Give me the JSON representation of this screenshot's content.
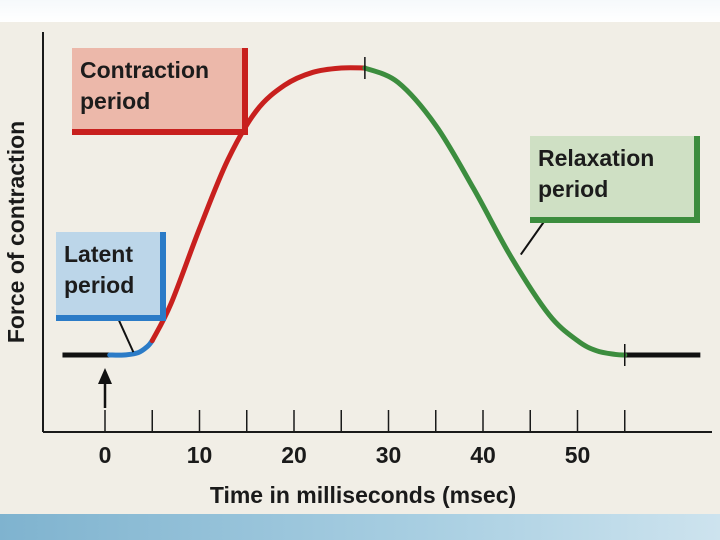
{
  "chart_data": {
    "type": "line",
    "title": "",
    "xlabel": "Time in milliseconds (msec)",
    "ylabel": "Force of contraction",
    "xlim": [
      -5,
      62
    ],
    "ylim": [
      0,
      1
    ],
    "xticks": [
      0,
      10,
      20,
      30,
      40,
      50
    ],
    "minor_xticks": [
      5,
      15,
      25,
      35,
      45,
      55
    ],
    "baseline": {
      "color": "#111111",
      "x": [
        -4.5,
        0.5
      ],
      "x_end": [
        55,
        63
      ],
      "value": 0.0
    },
    "series": [
      {
        "name": "Latent period",
        "color": "#2b7bc7",
        "x": [
          0.5,
          2,
          3.5,
          4.5,
          5
        ],
        "y": [
          0.0,
          0.0,
          0.008,
          0.03,
          0.05
        ]
      },
      {
        "name": "Contraction period",
        "color": "#c8201e",
        "x": [
          5,
          7,
          10,
          13,
          16,
          19,
          22,
          25,
          27.5
        ],
        "y": [
          0.05,
          0.18,
          0.44,
          0.68,
          0.85,
          0.94,
          0.985,
          1.0,
          1.0
        ]
      },
      {
        "name": "Relaxation period",
        "color": "#3c8d3e",
        "x": [
          27.5,
          31,
          35,
          39,
          43,
          47,
          50,
          52,
          54,
          55
        ],
        "y": [
          1.0,
          0.95,
          0.8,
          0.58,
          0.34,
          0.14,
          0.05,
          0.015,
          0.002,
          0.0
        ]
      }
    ],
    "annotations": [
      {
        "id": "contraction",
        "line1": "Contraction",
        "line2": "period",
        "points_to": [
          15,
          0.78
        ]
      },
      {
        "id": "relaxation",
        "line1": "Relaxation",
        "line2": "period",
        "points_to": [
          44,
          0.35
        ]
      },
      {
        "id": "latent",
        "line1": "Latent",
        "line2": "period",
        "points_to": [
          3,
          0.01
        ]
      }
    ],
    "stimulus_arrow_x": 0,
    "phase_marks_x": [
      27.5,
      55
    ]
  },
  "colors": {
    "background": "#f1eee6",
    "axis": "#1a1a1a",
    "latent": "#2b7bc7",
    "contraction": "#c8201e",
    "relaxation": "#3c8d3e"
  }
}
